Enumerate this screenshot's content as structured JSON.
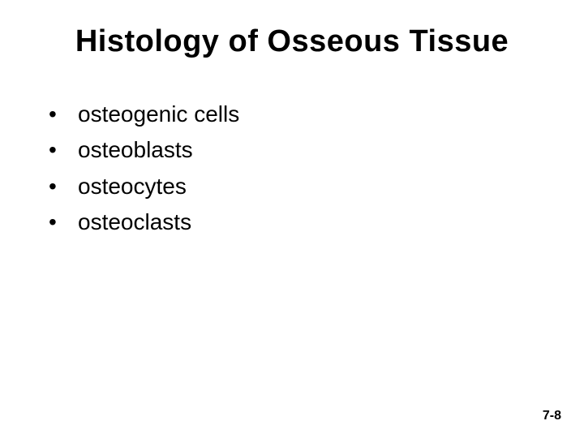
{
  "title": "Histology of Osseous Tissue",
  "bullets": {
    "item0": "osteogenic cells",
    "item1": "osteoblasts",
    "item2": "osteocytes",
    "item3": "osteoclasts"
  },
  "page_number": "7-8",
  "colors": {
    "background": "#ffffff",
    "text": "#000000"
  },
  "typography": {
    "title_fontsize": 38,
    "title_weight": "bold",
    "bullet_fontsize": 28,
    "page_number_fontsize": 16,
    "font_family": "Arial"
  }
}
